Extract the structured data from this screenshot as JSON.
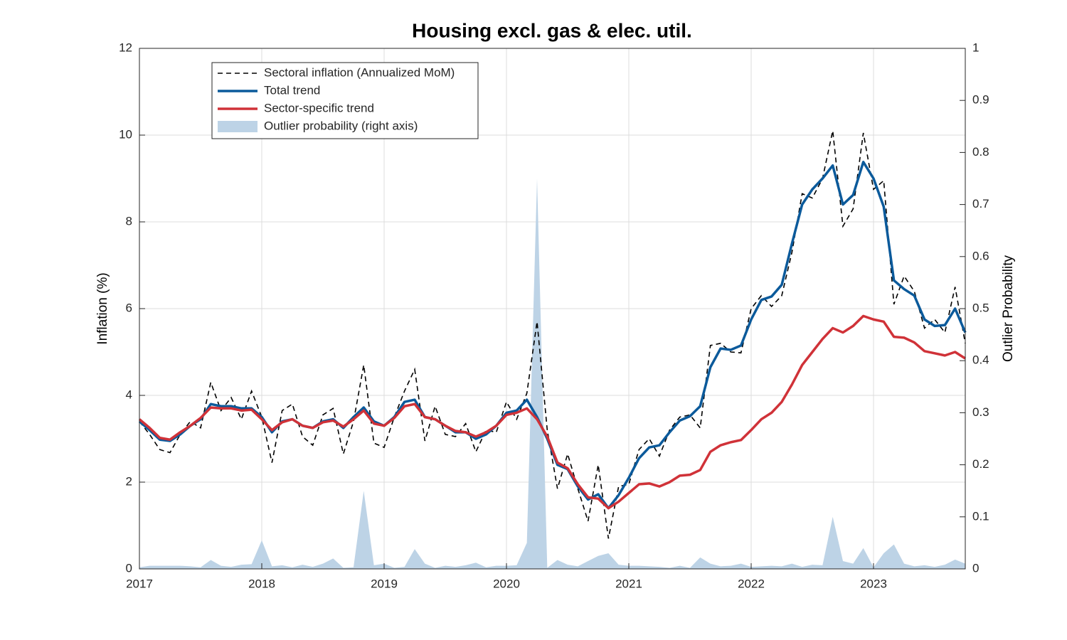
{
  "chart_data": {
    "type": "line",
    "title": "Housing excl. gas & elec. util.",
    "ylabel": "Inflation (%)",
    "y2label": "Outlier Probability",
    "x": [
      2017,
      2017.0833,
      2017.1667,
      2017.25,
      2017.3333,
      2017.4167,
      2017.5,
      2017.5833,
      2017.6667,
      2017.75,
      2017.8333,
      2017.9167,
      2018,
      2018.0833,
      2018.1667,
      2018.25,
      2018.3333,
      2018.4167,
      2018.5,
      2018.5833,
      2018.6667,
      2018.75,
      2018.8333,
      2018.9167,
      2019,
      2019.0833,
      2019.1667,
      2019.25,
      2019.3333,
      2019.4167,
      2019.5,
      2019.5833,
      2019.6667,
      2019.75,
      2019.8333,
      2019.9167,
      2020,
      2020.0833,
      2020.1667,
      2020.25,
      2020.3333,
      2020.4167,
      2020.5,
      2020.5833,
      2020.6667,
      2020.75,
      2020.8333,
      2020.9167,
      2021,
      2021.0833,
      2021.1667,
      2021.25,
      2021.3333,
      2021.4167,
      2021.5,
      2021.5833,
      2021.6667,
      2021.75,
      2021.8333,
      2021.9167,
      2022,
      2022.0833,
      2022.1667,
      2022.25,
      2022.3333,
      2022.4167,
      2022.5,
      2022.5833,
      2022.6667,
      2022.75,
      2022.8333,
      2022.9167,
      2023,
      2023.0833,
      2023.1667,
      2023.25,
      2023.3333,
      2023.4167,
      2023.5,
      2023.5833,
      2023.6667,
      2023.75
    ],
    "series": [
      {
        "name": "Outlier probability (right axis)",
        "color": "#bdd3e6",
        "kind": "area",
        "axis": "y2",
        "values": [
          0.003,
          0.006,
          0.006,
          0.006,
          0.006,
          0.005,
          0.003,
          0.017,
          0.006,
          0.004,
          0.008,
          0.009,
          0.055,
          0.005,
          0.007,
          0.003,
          0.008,
          0.004,
          0.01,
          0.02,
          0.002,
          0.003,
          0.15,
          0.007,
          0.01,
          0.002,
          0.004,
          0.038,
          0.01,
          0.002,
          0.006,
          0.004,
          0.007,
          0.012,
          0.003,
          0.006,
          0.006,
          0.007,
          0.05,
          0.75,
          0.002,
          0.017,
          0.008,
          0.005,
          0.015,
          0.025,
          0.03,
          0.008,
          0.006,
          0.006,
          0.005,
          0.004,
          0.002,
          0.006,
          0.002,
          0.022,
          0.01,
          0.005,
          0.006,
          0.01,
          0.004,
          0.005,
          0.006,
          0.005,
          0.01,
          0.004,
          0.008,
          0.007,
          0.1,
          0.015,
          0.01,
          0.04,
          0.003,
          0.03,
          0.047,
          0.01,
          0.005,
          0.007,
          0.004,
          0.008,
          0.018,
          0.01
        ]
      },
      {
        "name": "Sectoral inflation (Annualized MoM)",
        "color": "#000000",
        "kind": "dashed",
        "values": [
          3.4,
          3.1,
          2.75,
          2.68,
          3.1,
          3.4,
          3.25,
          4.3,
          3.65,
          3.95,
          3.45,
          4.1,
          3.5,
          2.45,
          3.65,
          3.8,
          3.05,
          2.85,
          3.55,
          3.7,
          2.65,
          3.4,
          4.7,
          2.9,
          2.8,
          3.5,
          4.1,
          4.6,
          2.95,
          3.75,
          3.1,
          3.05,
          3.35,
          2.7,
          3.2,
          3.15,
          3.85,
          3.45,
          4.05,
          5.7,
          3.2,
          1.85,
          2.65,
          1.85,
          1.1,
          2.4,
          0.7,
          1.9,
          1.95,
          2.75,
          3.0,
          2.6,
          3.2,
          3.5,
          3.55,
          3.25,
          5.15,
          5.2,
          5.0,
          4.98,
          6.0,
          6.3,
          6.05,
          6.3,
          7.3,
          8.65,
          8.55,
          9.0,
          10.1,
          7.9,
          8.3,
          10.05,
          8.75,
          8.95,
          6.1,
          6.75,
          6.4,
          5.55,
          5.75,
          5.45,
          6.5,
          5.2
        ]
      },
      {
        "name": "Total trend",
        "color": "#0b5a9b",
        "kind": "solid",
        "values": [
          3.4,
          3.2,
          2.98,
          2.95,
          3.1,
          3.3,
          3.45,
          3.8,
          3.75,
          3.75,
          3.7,
          3.7,
          3.5,
          3.15,
          3.4,
          3.45,
          3.3,
          3.25,
          3.4,
          3.45,
          3.25,
          3.5,
          3.72,
          3.4,
          3.3,
          3.5,
          3.85,
          3.9,
          3.5,
          3.45,
          3.3,
          3.15,
          3.15,
          3.0,
          3.1,
          3.3,
          3.6,
          3.65,
          3.9,
          3.5,
          3.0,
          2.4,
          2.3,
          1.9,
          1.6,
          1.72,
          1.4,
          1.7,
          2.1,
          2.55,
          2.8,
          2.85,
          3.15,
          3.42,
          3.52,
          3.75,
          4.65,
          5.08,
          5.05,
          5.15,
          5.75,
          6.2,
          6.28,
          6.55,
          7.5,
          8.4,
          8.75,
          9.0,
          9.3,
          8.4,
          8.62,
          9.38,
          9.0,
          8.35,
          6.65,
          6.45,
          6.3,
          5.75,
          5.6,
          5.62,
          6.0,
          5.45
        ]
      },
      {
        "name": "Sector-specific trend",
        "color": "#d03238",
        "kind": "solid",
        "values": [
          3.45,
          3.25,
          3.02,
          2.98,
          3.15,
          3.3,
          3.48,
          3.72,
          3.7,
          3.7,
          3.65,
          3.67,
          3.45,
          3.2,
          3.38,
          3.45,
          3.3,
          3.25,
          3.38,
          3.42,
          3.28,
          3.45,
          3.65,
          3.35,
          3.3,
          3.48,
          3.75,
          3.8,
          3.5,
          3.45,
          3.3,
          3.18,
          3.15,
          3.05,
          3.15,
          3.3,
          3.55,
          3.6,
          3.7,
          3.45,
          3.05,
          2.45,
          2.32,
          1.95,
          1.65,
          1.62,
          1.4,
          1.55,
          1.75,
          1.95,
          1.97,
          1.9,
          2.0,
          2.15,
          2.17,
          2.28,
          2.7,
          2.85,
          2.92,
          2.97,
          3.2,
          3.45,
          3.6,
          3.85,
          4.25,
          4.7,
          5.0,
          5.3,
          5.55,
          5.45,
          5.6,
          5.83,
          5.75,
          5.7,
          5.35,
          5.33,
          5.22,
          5.02,
          4.97,
          4.92,
          5.0,
          4.85
        ]
      }
    ],
    "legend_order": [
      1,
      2,
      3,
      0
    ],
    "legend": "upper left",
    "xlim": [
      2017,
      2023.75
    ],
    "xticks": [
      2017,
      2018,
      2019,
      2020,
      2021,
      2022,
      2023
    ],
    "ylim": [
      0,
      12
    ],
    "yticks": [
      0,
      2,
      4,
      6,
      8,
      10,
      12
    ],
    "y2lim": [
      0,
      1
    ],
    "y2ticks": [
      0,
      0.1,
      0.2,
      0.3,
      0.4,
      0.5,
      0.6,
      0.7,
      0.8,
      0.9,
      1
    ],
    "grid": true
  }
}
